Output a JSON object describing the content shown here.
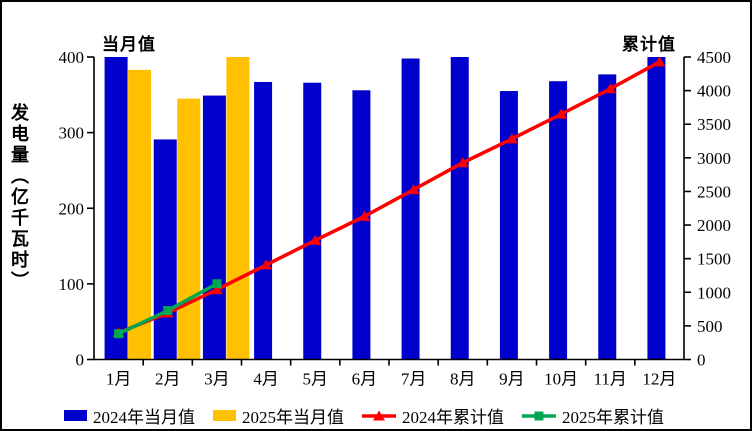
{
  "header": {
    "left_label": "当月值",
    "right_label": "累计值"
  },
  "y_axis_title": "发电量（亿千瓦时）",
  "colors": {
    "bar_2024": "#0000CC",
    "bar_2025": "#FFC000",
    "line_2024": "#FE0000",
    "line_2025": "#00A651",
    "axis": "#000000"
  },
  "legend": [
    {
      "label": "2024年当月值",
      "color": "#0000CC",
      "type": "bar"
    },
    {
      "label": "2025年当月值",
      "color": "#FFC000",
      "type": "bar"
    },
    {
      "label": "2024年累计值",
      "color": "#FE0000",
      "type": "line-triangle"
    },
    {
      "label": "2025年累计值",
      "color": "#00A651",
      "type": "line-square"
    }
  ],
  "chart_data": {
    "type": "bar",
    "subtype": "bar+line dual-axis combo",
    "title": "",
    "categories": [
      "1月",
      "2月",
      "3月",
      "4月",
      "5月",
      "6月",
      "7月",
      "8月",
      "9月",
      "10月",
      "11月",
      "12月"
    ],
    "left_axis": {
      "label": "发电量（亿千瓦时）",
      "min": 0,
      "max": 400,
      "step": 100,
      "tick_labels": [
        "0",
        "100",
        "200",
        "300",
        "400"
      ]
    },
    "right_axis": {
      "min": 0,
      "max": 4500,
      "step": 500,
      "tick_labels": [
        "0",
        "500",
        "1000",
        "1500",
        "2000",
        "2500",
        "3000",
        "3500",
        "4000",
        "4500"
      ]
    },
    "grid": false,
    "legend_position": "bottom",
    "series": [
      {
        "name": "2024年当月值",
        "type": "bar",
        "axis": "left",
        "color": "#0000CC",
        "values": [
          400,
          291,
          349,
          367,
          366,
          356,
          398,
          400,
          355,
          368,
          377,
          400
        ]
      },
      {
        "name": "2025年当月值",
        "type": "bar",
        "axis": "left",
        "color": "#FFC000",
        "values": [
          383,
          345,
          400
        ]
      },
      {
        "name": "2024年累计值",
        "type": "line",
        "marker": "triangle",
        "axis": "right",
        "color": "#FE0000",
        "values": [
          400,
          691,
          1040,
          1407,
          1773,
          2129,
          2527,
          2927,
          3282,
          3650,
          4027,
          4427
        ]
      },
      {
        "name": "2025年累计值",
        "type": "line",
        "marker": "square",
        "axis": "right",
        "color": "#00A651",
        "values": [
          383,
          728,
          1128
        ]
      }
    ]
  }
}
